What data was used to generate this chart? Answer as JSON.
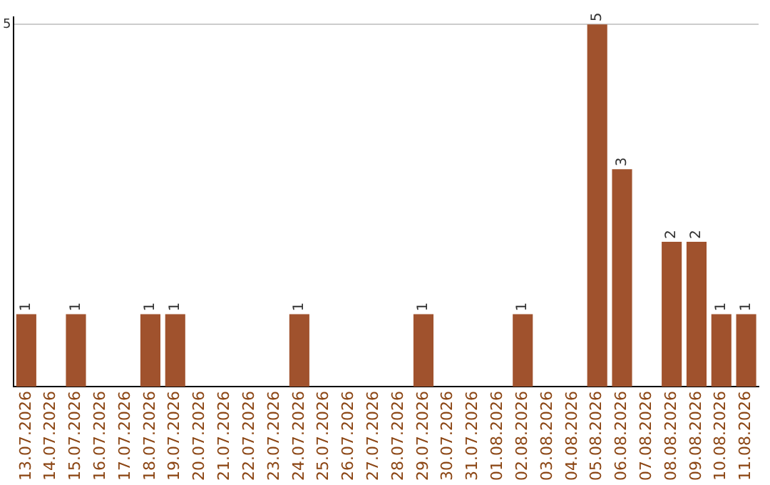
{
  "chart_data": {
    "type": "bar",
    "categories": [
      "13.07.2026",
      "14.07.2026",
      "15.07.2026",
      "16.07.2026",
      "17.07.2026",
      "18.07.2026",
      "19.07.2026",
      "20.07.2026",
      "21.07.2026",
      "22.07.2026",
      "23.07.2026",
      "24.07.2026",
      "25.07.2026",
      "26.07.2026",
      "27.07.2026",
      "28.07.2026",
      "29.07.2026",
      "30.07.2026",
      "31.07.2026",
      "01.08.2026",
      "02.08.2026",
      "03.08.2026",
      "04.08.2026",
      "05.08.2026",
      "06.08.2026",
      "07.08.2026",
      "08.08.2026",
      "09.08.2026",
      "10.08.2026",
      "11.08.2026"
    ],
    "values": [
      1,
      null,
      1,
      null,
      null,
      1,
      1,
      null,
      null,
      null,
      null,
      1,
      null,
      null,
      null,
      null,
      1,
      null,
      null,
      null,
      1,
      null,
      null,
      5,
      3,
      null,
      2,
      2,
      1,
      1
    ],
    "color": "#a0522d",
    "ylim": [
      0,
      5.1
    ],
    "yticks": [
      5
    ],
    "grid": "y",
    "data_labels": true
  }
}
